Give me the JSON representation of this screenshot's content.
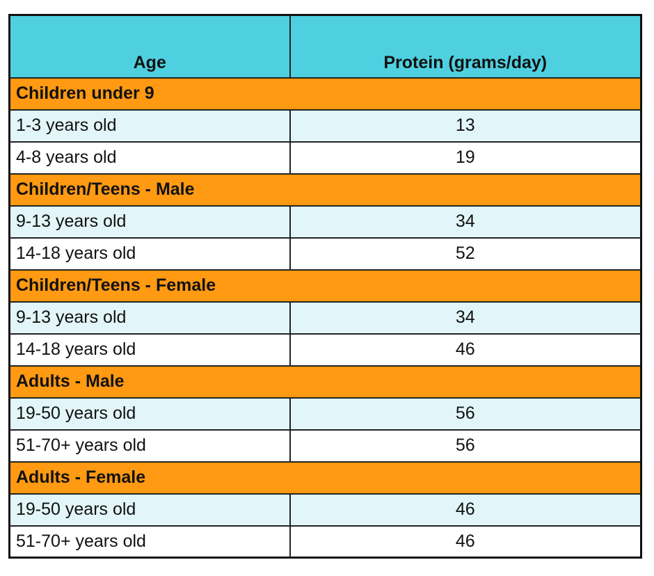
{
  "table": {
    "header": [
      "Age",
      "Protein (grams/day)"
    ],
    "groups": [
      {
        "label": "Children under 9",
        "rows": [
          [
            "1-3 years old",
            13
          ],
          [
            "4-8 years old",
            19
          ]
        ]
      },
      {
        "label": "Children/Teens - Male",
        "rows": [
          [
            "9-13 years old",
            34
          ],
          [
            "14-18 years old",
            52
          ]
        ]
      },
      {
        "label": "Children/Teens - Female",
        "rows": [
          [
            "9-13 years old",
            34
          ],
          [
            "14-18 years old",
            46
          ]
        ]
      },
      {
        "label": "Adults - Male",
        "rows": [
          [
            "19-50 years old",
            56
          ],
          [
            "51-70+ years old",
            56
          ]
        ]
      },
      {
        "label": "Adults - Female",
        "rows": [
          [
            "19-50 years old",
            46
          ],
          [
            "51-70+ years old",
            46
          ]
        ]
      }
    ]
  }
}
